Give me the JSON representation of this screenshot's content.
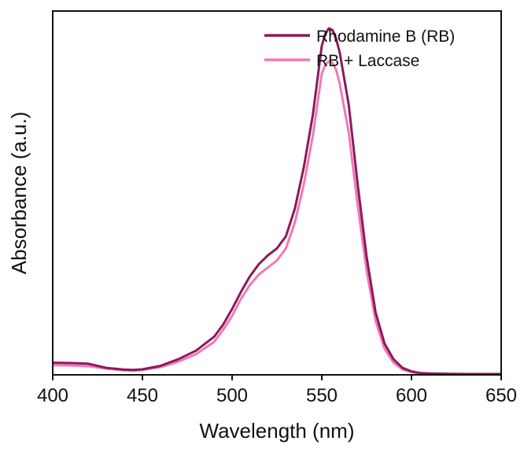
{
  "chart_data": {
    "type": "line",
    "xlabel": "Wavelength (nm)",
    "ylabel": "Absorbance (a.u.)",
    "xlim": [
      400,
      650
    ],
    "ylim": [
      0,
      1.05
    ],
    "x_ticks": [
      "400",
      "450",
      "500",
      "550",
      "600",
      "650"
    ],
    "x_tick_values": [
      400,
      450,
      500,
      550,
      600,
      650
    ],
    "y_ticks_shown": false,
    "grid": false,
    "legend_position": "top-right",
    "series": [
      {
        "name": "Rhodamine B (RB)",
        "color": "#8b1a5c",
        "x": [
          400,
          410,
          420,
          430,
          440,
          445,
          450,
          460,
          470,
          480,
          490,
          495,
          500,
          505,
          510,
          515,
          520,
          525,
          530,
          535,
          540,
          545,
          550,
          552,
          554,
          556,
          558,
          560,
          565,
          570,
          575,
          580,
          585,
          590,
          595,
          600,
          605,
          610,
          620,
          630,
          640,
          650
        ],
        "y": [
          0.035,
          0.034,
          0.032,
          0.02,
          0.015,
          0.014,
          0.016,
          0.026,
          0.045,
          0.07,
          0.11,
          0.145,
          0.19,
          0.24,
          0.285,
          0.32,
          0.345,
          0.365,
          0.4,
          0.48,
          0.6,
          0.75,
          0.95,
          0.985,
          1.0,
          0.995,
          0.97,
          0.93,
          0.78,
          0.55,
          0.34,
          0.18,
          0.09,
          0.045,
          0.02,
          0.01,
          0.005,
          0.004,
          0.003,
          0.002,
          0.002,
          0.002
        ]
      },
      {
        "name": "RB + Laccase",
        "color": "#f07ab4",
        "x": [
          400,
          410,
          420,
          430,
          440,
          445,
          450,
          460,
          470,
          480,
          490,
          495,
          500,
          505,
          510,
          515,
          520,
          525,
          530,
          535,
          540,
          545,
          550,
          552,
          554,
          556,
          558,
          560,
          565,
          570,
          575,
          580,
          585,
          590,
          595,
          600,
          605,
          610,
          620,
          630,
          640,
          650
        ],
        "y": [
          0.028,
          0.027,
          0.025,
          0.018,
          0.013,
          0.012,
          0.014,
          0.022,
          0.038,
          0.06,
          0.095,
          0.13,
          0.17,
          0.22,
          0.26,
          0.29,
          0.31,
          0.33,
          0.365,
          0.44,
          0.55,
          0.69,
          0.87,
          0.895,
          0.905,
          0.9,
          0.88,
          0.84,
          0.7,
          0.49,
          0.3,
          0.155,
          0.075,
          0.035,
          0.015,
          0.008,
          0.004,
          0.003,
          0.003,
          0.003,
          0.003,
          0.003
        ]
      }
    ]
  }
}
